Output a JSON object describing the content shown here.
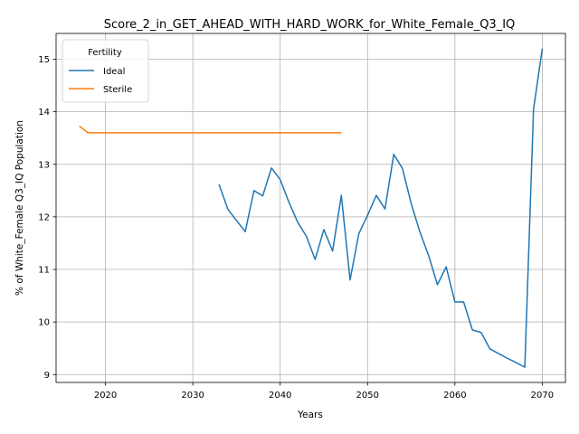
{
  "chart_data": {
    "type": "line",
    "title": "Score_2_in_GET_AHEAD_WITH_HARD_WORK_for_White_Female_Q3_IQ",
    "xlabel": "Years",
    "ylabel": "% of White_Female Q3_IQ Population",
    "xlim": [
      2014.35,
      2072.65
    ],
    "ylim": [
      8.85,
      15.49
    ],
    "xticks": [
      2020,
      2030,
      2040,
      2050,
      2060,
      2070
    ],
    "yticks": [
      9,
      10,
      11,
      12,
      13,
      14,
      15
    ],
    "grid": true,
    "legend": {
      "title": "Fertility",
      "placement": "top-left"
    },
    "series": [
      {
        "name": "Ideal",
        "color": "#1f77b4",
        "x": [
          2033,
          2034,
          2035,
          2036,
          2037,
          2038,
          2039,
          2040,
          2041,
          2042,
          2043,
          2044,
          2045,
          2046,
          2047,
          2048,
          2049,
          2050,
          2051,
          2052,
          2053,
          2054,
          2055,
          2056,
          2057,
          2058,
          2059,
          2060,
          2061,
          2062,
          2063,
          2064,
          2065,
          2066,
          2067,
          2068,
          2069,
          2070
        ],
        "y": [
          12.62,
          12.15,
          11.93,
          11.72,
          12.5,
          12.4,
          12.93,
          12.71,
          12.28,
          11.9,
          11.63,
          11.19,
          11.76,
          11.35,
          12.41,
          10.8,
          11.68,
          12.03,
          12.41,
          12.15,
          13.19,
          12.92,
          12.25,
          11.71,
          11.26,
          10.71,
          11.05,
          10.38,
          10.38,
          9.85,
          9.8,
          9.49,
          9.4,
          9.31,
          9.23,
          9.14,
          14.05,
          15.2
        ]
      },
      {
        "name": "Sterile",
        "color": "#ff7f0e",
        "x": [
          2017,
          2018,
          2019,
          2020,
          2021,
          2022,
          2023,
          2024,
          2025,
          2026,
          2027,
          2028,
          2029,
          2030,
          2031,
          2032,
          2033,
          2034,
          2035,
          2036,
          2037,
          2038,
          2039,
          2040,
          2041,
          2042,
          2043,
          2044,
          2045,
          2046,
          2047
        ],
        "y": [
          13.73,
          13.6,
          13.6,
          13.6,
          13.6,
          13.6,
          13.6,
          13.6,
          13.6,
          13.6,
          13.6,
          13.6,
          13.6,
          13.6,
          13.6,
          13.6,
          13.6,
          13.6,
          13.6,
          13.6,
          13.6,
          13.6,
          13.6,
          13.6,
          13.6,
          13.6,
          13.6,
          13.6,
          13.6,
          13.6,
          13.6
        ]
      }
    ]
  }
}
